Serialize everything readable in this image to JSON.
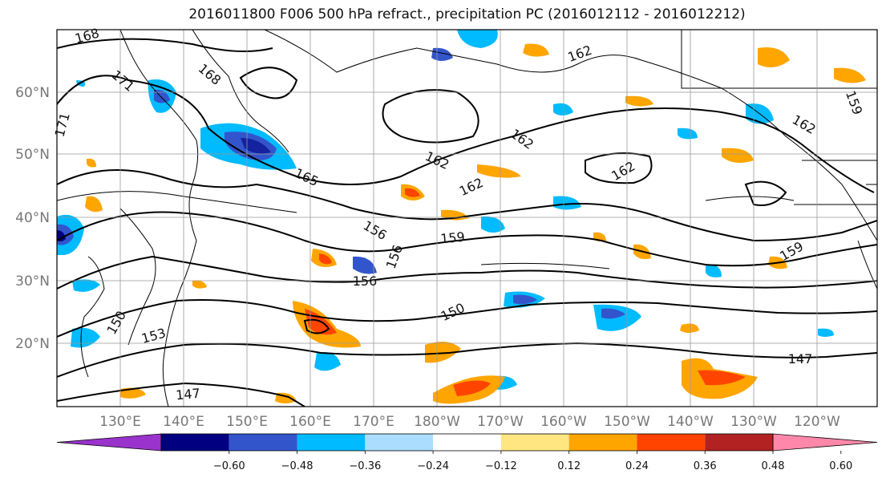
{
  "title": "2016011800 F006 500 hPa refract., precipitation PC (2016012112 - 2016012212)",
  "latitude_labels": [
    "60°N",
    "50°N",
    "40°N",
    "30°N",
    "20°N"
  ],
  "longitude_labels": [
    "130°E",
    "140°E",
    "150°E",
    "160°E",
    "170°E",
    "180°W",
    "170°W",
    "160°W",
    "150°W",
    "140°W",
    "130°W",
    "120°W"
  ],
  "contour_labels": [
    "168",
    "162",
    "171",
    "168",
    "171",
    "162",
    "165",
    "162",
    "162",
    "162",
    "162",
    "156",
    "159",
    "156",
    "156",
    "159",
    "150",
    "150",
    "153",
    "147",
    "147",
    "159"
  ],
  "colorbar": {
    "ticks": [
      "−0.60",
      "−0.48",
      "−0.36",
      "−0.24",
      "−0.12",
      "0.12",
      "0.24",
      "0.36",
      "0.48",
      "0.60"
    ],
    "colors": [
      "#9933cc",
      "#000080",
      "#3355cc",
      "#00bbff",
      "#aaddff",
      "#ffffff",
      "#ffe680",
      "#ffa500",
      "#ff4400",
      "#b22222",
      "#ff88aa"
    ]
  }
}
